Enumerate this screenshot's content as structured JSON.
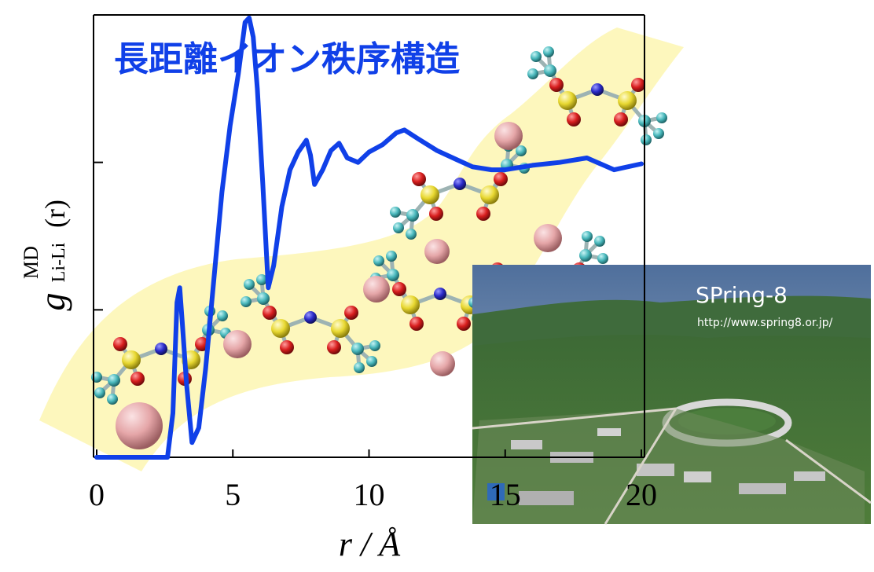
{
  "chart_data": {
    "type": "line",
    "title": "長距離イオン秩序構造",
    "xlabel": "r / Å",
    "ylabel": "g MD Li-Li(r)",
    "ylabel_parts": {
      "main": "g",
      "superscript": "MD",
      "subscript": "Li-Li",
      "argument": "(r)"
    },
    "xlim": [
      0,
      20
    ],
    "ylim": [
      0,
      3
    ],
    "x_ticks": [
      "0",
      "5",
      "10",
      "15",
      "20"
    ],
    "y_ticks": [
      0,
      1,
      2,
      3
    ],
    "grid": false,
    "legend": "none",
    "series": [
      {
        "color": "#1040e8",
        "x": [
          0,
          2.6,
          2.8,
          2.95,
          3.05,
          3.15,
          3.3,
          3.5,
          3.75,
          4.0,
          4.3,
          4.6,
          4.9,
          5.2,
          5.45,
          5.6,
          5.75,
          5.9,
          6.1,
          6.3,
          6.5,
          6.8,
          7.1,
          7.4,
          7.7,
          7.85,
          8.0,
          8.3,
          8.6,
          8.9,
          9.2,
          9.6,
          10.0,
          10.5,
          11.0,
          11.3,
          11.8,
          12.5,
          13.2,
          13.8,
          14.5,
          15.0,
          16.0,
          17.0,
          18.0,
          19.0,
          20.0
        ],
        "y": [
          0,
          0,
          0.3,
          1.05,
          1.15,
          0.9,
          0.5,
          0.1,
          0.2,
          0.6,
          1.2,
          1.8,
          2.25,
          2.6,
          2.95,
          2.98,
          2.85,
          2.5,
          1.85,
          1.15,
          1.3,
          1.7,
          1.95,
          2.07,
          2.15,
          2.05,
          1.85,
          1.95,
          2.08,
          2.13,
          2.03,
          2.0,
          2.07,
          2.12,
          2.2,
          2.22,
          2.16,
          2.08,
          2.02,
          1.97,
          1.95,
          1.95,
          1.98,
          2.0,
          2.03,
          1.95,
          1.99
        ]
      }
    ]
  },
  "photo": {
    "caption": "SPring-8",
    "url_text": "http://www.spring8.or.jp/"
  },
  "colors": {
    "curve": "#1040e8",
    "title": "#1040e8",
    "band": "#fdf6b2",
    "lithium": "#e5a6a8",
    "sulfur": "#e8d831",
    "oxygen": "#d81e1e",
    "nitrogen": "#2a2ac8",
    "fluorine": "#49b8bc",
    "carbon": "#3a9aa0"
  }
}
